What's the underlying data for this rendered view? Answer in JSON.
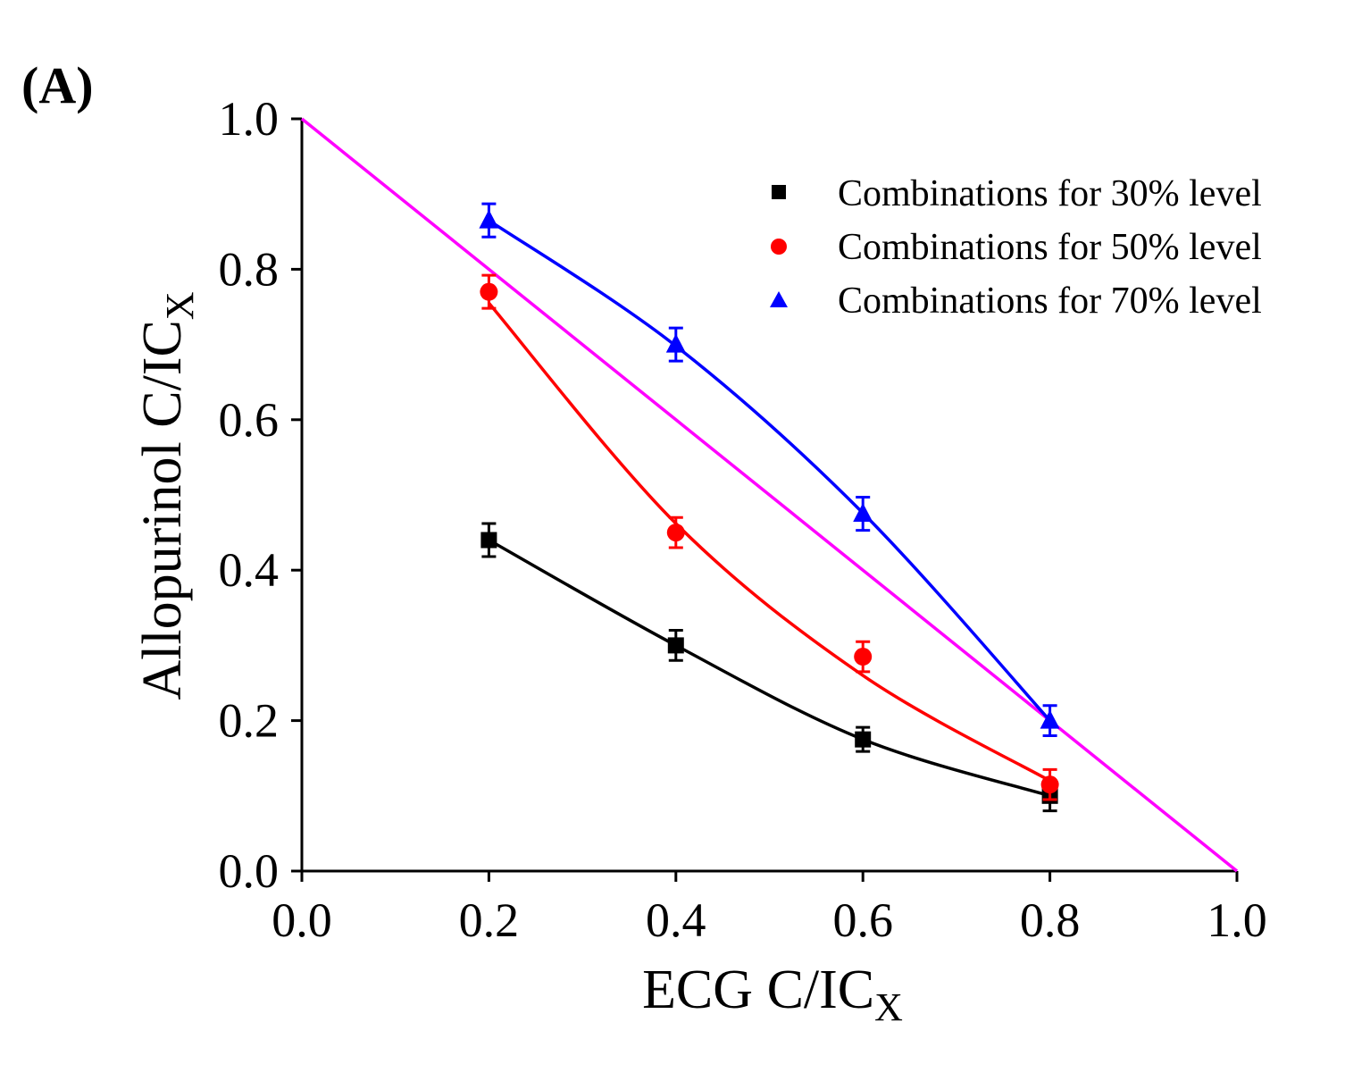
{
  "panel_label": "(A)",
  "chart_data": {
    "type": "scatter",
    "xlabel": "ECG C/IC",
    "xlabel_sub": "X",
    "ylabel": "Allopurinol C/IC",
    "ylabel_sub": "X",
    "xlim": [
      0.0,
      1.0
    ],
    "ylim": [
      0.0,
      1.0
    ],
    "xticks": [
      0.0,
      0.2,
      0.4,
      0.6,
      0.8,
      1.0
    ],
    "yticks": [
      0.0,
      0.2,
      0.4,
      0.6,
      0.8,
      1.0
    ],
    "xtick_labels": [
      "0.0",
      "0.2",
      "0.4",
      "0.6",
      "0.8",
      "1.0"
    ],
    "ytick_labels": [
      "0.0",
      "0.2",
      "0.4",
      "0.6",
      "0.8",
      "1.0"
    ],
    "grid": false,
    "legend_position": "top-right",
    "series": [
      {
        "name": "Combinations for 30% level",
        "marker": "square",
        "color": "#000000",
        "x": [
          0.2,
          0.4,
          0.6,
          0.8
        ],
        "y": [
          0.44,
          0.3,
          0.175,
          0.1
        ],
        "error": [
          0.022,
          0.02,
          0.016,
          0.02
        ],
        "fit": [
          0.44,
          0.3,
          0.175,
          0.1
        ]
      },
      {
        "name": "Combinations for 50% level",
        "marker": "circle",
        "color": "#ff0000",
        "x": [
          0.2,
          0.4,
          0.6,
          0.8
        ],
        "y": [
          0.77,
          0.45,
          0.285,
          0.115
        ],
        "error": [
          0.022,
          0.02,
          0.02,
          0.02
        ],
        "fit": [
          0.755,
          0.462,
          0.26,
          0.12
        ]
      },
      {
        "name": "Combinations for 70% level",
        "marker": "triangle",
        "color": "#0000ff",
        "x": [
          0.2,
          0.4,
          0.6,
          0.8
        ],
        "y": [
          0.865,
          0.7,
          0.475,
          0.2
        ],
        "error": [
          0.022,
          0.022,
          0.022,
          0.02
        ],
        "fit": [
          0.865,
          0.698,
          0.476,
          0.2
        ]
      }
    ],
    "reference_line": {
      "color": "#ff00ff",
      "x": [
        0.0,
        1.0
      ],
      "y": [
        1.0,
        0.0
      ]
    }
  }
}
